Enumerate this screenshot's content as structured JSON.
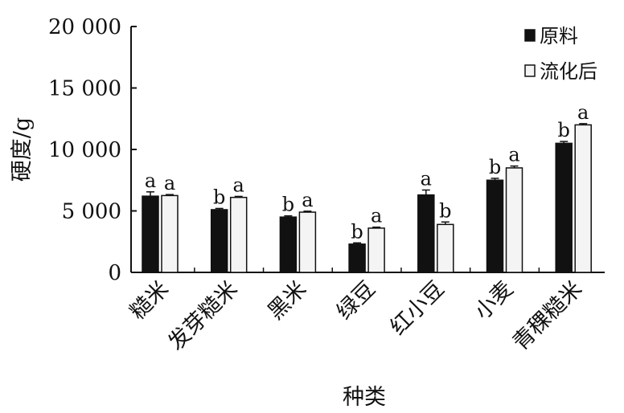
{
  "chart_data": {
    "type": "bar",
    "title": "",
    "xlabel": "种类",
    "ylabel": "硬度/g",
    "ylim": [
      0,
      20000
    ],
    "yticks": [
      0,
      5000,
      10000,
      15000,
      20000
    ],
    "ytick_labels": [
      "0",
      "5 000",
      "10 000",
      "15 000",
      "20 000"
    ],
    "categories": [
      "糙米",
      "发芽糙米",
      "黑米",
      "绿豆",
      "红小豆",
      "小麦",
      "青稞糙米"
    ],
    "series": [
      {
        "name": "原料",
        "color": "#111111",
        "values": [
          6200,
          5100,
          4500,
          2300,
          6300,
          7500,
          10500
        ],
        "errors": [
          350,
          100,
          100,
          100,
          400,
          150,
          150
        ],
        "labels": [
          "a",
          "b",
          "b",
          "b",
          "a",
          "b",
          "b"
        ]
      },
      {
        "name": "流化后",
        "color": "#f4f4f4",
        "values": [
          6250,
          6100,
          4900,
          3600,
          3900,
          8500,
          12000
        ],
        "errors": [
          80,
          80,
          80,
          80,
          200,
          150,
          100
        ],
        "labels": [
          "a",
          "a",
          "a",
          "a",
          "b",
          "a",
          "a"
        ]
      }
    ],
    "legend_position": "top-right",
    "grid": false
  }
}
